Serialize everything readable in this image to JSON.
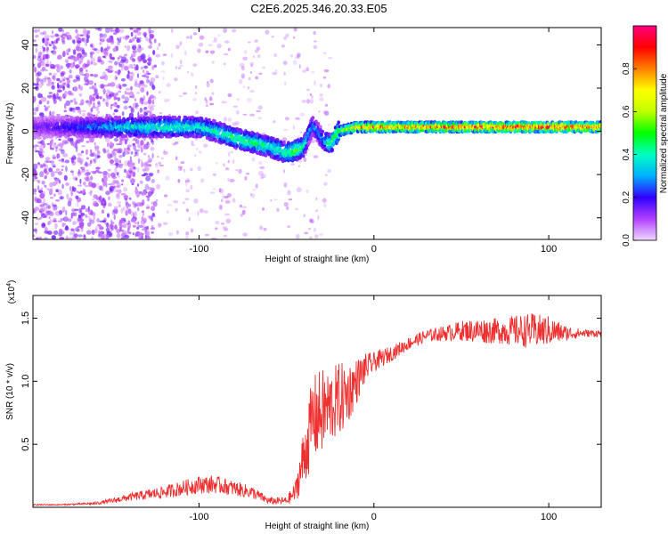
{
  "title": "C2E6.2025.346.20.33.E05",
  "chart_data": [
    {
      "type": "heatmap",
      "xlabel": "Height of straight line (km)",
      "ylabel": "Frequency (Hz)",
      "xlim": [
        -195,
        130
      ],
      "ylim": [
        -50,
        48
      ],
      "x_ticks": [
        -100,
        0,
        100
      ],
      "y_ticks": [
        -40,
        -20,
        0,
        20,
        40
      ],
      "colorbar": {
        "label": "Normalized spectral amplitude",
        "range": [
          0,
          1
        ],
        "ticks": [
          "0.0",
          "0.2",
          "0.4",
          "0.6",
          "0.8"
        ],
        "colors": [
          "#f0d8ff",
          "#b040ff",
          "#3000ff",
          "#00b0ff",
          "#00ffc0",
          "#00ff00",
          "#c0ff00",
          "#ffff00",
          "#ff8000",
          "#ff0000",
          "#ff0080"
        ]
      },
      "ridge": {
        "x": [
          -195,
          -180,
          -160,
          -140,
          -120,
          -100,
          -90,
          -80,
          -70,
          -60,
          -50,
          -45,
          -40,
          -35,
          -30,
          -25,
          -20,
          -15,
          -10,
          0,
          20,
          50,
          100,
          130
        ],
        "freq": [
          2,
          2,
          2,
          2,
          2,
          2,
          0,
          -3,
          -5,
          -7,
          -10,
          -9,
          -7,
          3,
          -3,
          -6,
          0,
          1,
          2,
          2,
          2,
          2,
          2,
          2
        ],
        "amplitude": [
          0.15,
          0.2,
          0.3,
          0.4,
          0.45,
          0.42,
          0.45,
          0.5,
          0.5,
          0.45,
          0.5,
          0.55,
          0.45,
          0.3,
          0.3,
          0.5,
          0.6,
          0.7,
          0.8,
          0.9,
          0.85,
          0.95,
          0.98,
          0.9
        ]
      }
    },
    {
      "type": "line",
      "xlabel": "Height of straight line (km)",
      "ylabel": "SNR (10 * v/v)",
      "multiplier": "(x10",
      "multiplier_exp": "4",
      "multiplier_close": ")",
      "xlim": [
        -195,
        130
      ],
      "ylim": [
        0,
        1.68
      ],
      "x_ticks": [
        -100,
        0,
        100
      ],
      "y_ticks": [
        0.5,
        1.0,
        1.5
      ],
      "y_tick_labels": [
        "0.5",
        "1.0",
        "1.5"
      ],
      "color": "#ee3030",
      "x": [
        -195,
        -180,
        -160,
        -150,
        -140,
        -130,
        -120,
        -110,
        -100,
        -90,
        -80,
        -70,
        -60,
        -50,
        -45,
        -40,
        -35,
        -30,
        -25,
        -20,
        -15,
        -10,
        -5,
        0,
        10,
        20,
        30,
        40,
        50,
        60,
        70,
        80,
        90,
        100,
        110,
        120,
        130
      ],
      "y": [
        0.02,
        0.02,
        0.03,
        0.05,
        0.08,
        0.1,
        0.12,
        0.15,
        0.18,
        0.18,
        0.15,
        0.12,
        0.05,
        0.05,
        0.12,
        0.4,
        0.7,
        0.75,
        0.8,
        0.85,
        0.9,
        1.0,
        1.1,
        1.15,
        1.22,
        1.3,
        1.36,
        1.38,
        1.4,
        1.4,
        1.4,
        1.4,
        1.4,
        1.4,
        1.38,
        1.38,
        1.38
      ],
      "noise": [
        0.005,
        0.005,
        0.01,
        0.02,
        0.03,
        0.04,
        0.05,
        0.06,
        0.07,
        0.07,
        0.06,
        0.05,
        0.03,
        0.03,
        0.08,
        0.25,
        0.35,
        0.35,
        0.3,
        0.3,
        0.25,
        0.18,
        0.12,
        0.08,
        0.06,
        0.05,
        0.05,
        0.06,
        0.08,
        0.1,
        0.1,
        0.12,
        0.14,
        0.12,
        0.06,
        0.03,
        0.03
      ]
    }
  ]
}
